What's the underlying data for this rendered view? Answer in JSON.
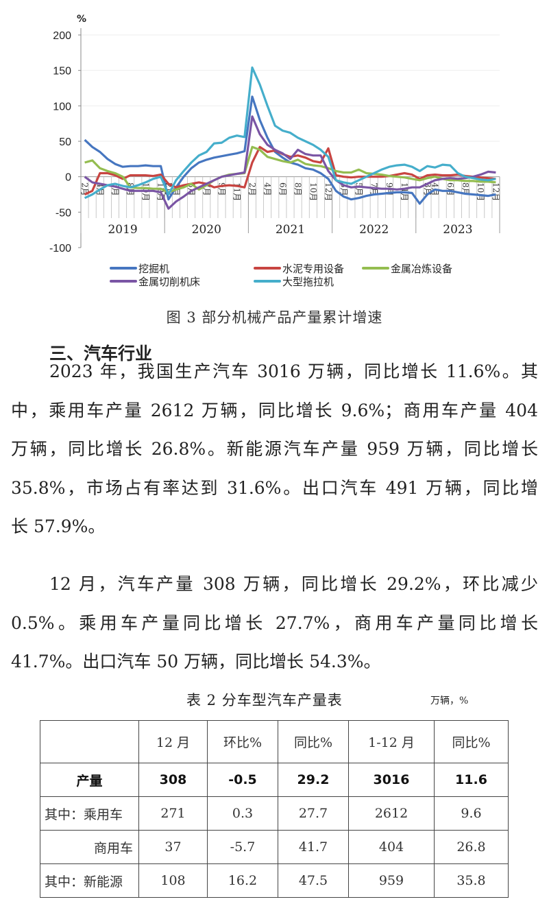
{
  "chart_data": {
    "type": "line",
    "ylabel": "%",
    "ylim": [
      -100,
      200
    ],
    "yticks": [
      200,
      150,
      100,
      50,
      0,
      -50,
      -100
    ],
    "years": [
      "2019",
      "2020",
      "2021",
      "2022",
      "2023"
    ],
    "month_labels": [
      [
        "2月",
        "",
        "4月",
        "",
        "6月",
        "",
        "8月",
        "",
        "10月",
        "",
        "12月"
      ],
      [
        "2月",
        "3月",
        "",
        "5月",
        "",
        "7月",
        "",
        "9月",
        "",
        "11月",
        ""
      ],
      [
        "2月",
        "",
        "4月",
        "",
        "6月",
        "",
        "8月",
        "",
        "10月",
        "",
        "12月"
      ],
      [
        "",
        "3月",
        "",
        "5月",
        "",
        "7月",
        "",
        "9月",
        "",
        "11月",
        ""
      ],
      [
        "",
        "3月",
        "4月",
        "",
        "6月",
        "",
        "8月",
        "",
        "10月",
        "",
        "12月"
      ]
    ],
    "x_note": "Feb–Dec of each year, 2019–2023",
    "grid": "horizontal",
    "legend": "bottom",
    "series": [
      {
        "name": "挖掘机",
        "color": "#4676c0",
        "values": [
          52,
          42,
          35,
          25,
          18,
          14,
          15,
          15,
          16,
          15,
          15,
          -32,
          -15,
          0,
          12,
          20,
          24,
          27,
          29,
          31,
          33,
          36,
          113,
          80,
          55,
          35,
          27,
          20,
          17,
          12,
          10,
          5,
          -3,
          -20,
          -28,
          -32,
          -30,
          -27,
          -25,
          -24,
          -23,
          -22,
          -22,
          -23,
          -38,
          -25,
          -18,
          -20,
          -20,
          -22,
          -24,
          -25,
          -26,
          -27,
          -25
        ]
      },
      {
        "name": "水泥专用设备",
        "color": "#c84441",
        "values": [
          -25,
          -20,
          5,
          5,
          2,
          -3,
          2,
          2,
          2,
          1,
          3,
          -10,
          -15,
          -12,
          -10,
          -8,
          -10,
          -15,
          -13,
          -12,
          -13,
          -15,
          20,
          42,
          35,
          37,
          32,
          28,
          30,
          27,
          22,
          20,
          40,
          2,
          0,
          -1,
          0,
          0,
          0,
          0,
          1,
          3,
          5,
          3,
          -3,
          2,
          3,
          2,
          2,
          3,
          1,
          0,
          -1,
          -2,
          -3
        ]
      },
      {
        "name": "金属冶炼设备",
        "color": "#94bd50",
        "values": [
          20,
          23,
          12,
          8,
          5,
          0,
          -15,
          -16,
          -16,
          -17,
          -17,
          -22,
          -18,
          -15,
          -10,
          -18,
          -12,
          -5,
          0,
          3,
          4,
          5,
          42,
          38,
          28,
          25,
          22,
          20,
          24,
          18,
          16,
          15,
          12,
          8,
          6,
          6,
          10,
          5,
          4,
          3,
          1,
          0,
          -1,
          -3,
          -5,
          -2,
          0,
          -3,
          -5,
          -5,
          -6,
          -6,
          -7,
          -7,
          -8
        ]
      },
      {
        "name": "金属切削机床",
        "color": "#7a55a4",
        "values": [
          0,
          -8,
          -10,
          -12,
          -14,
          -17,
          -20,
          -20,
          -20,
          -20,
          -22,
          -45,
          -35,
          -28,
          -20,
          -15,
          -10,
          -5,
          0,
          2,
          4,
          6,
          85,
          60,
          45,
          38,
          33,
          25,
          38,
          32,
          30,
          30,
          8,
          -5,
          -12,
          -15,
          -14,
          -15,
          -16,
          -17,
          -17,
          -18,
          -17,
          -15,
          -15,
          -10,
          -5,
          -3,
          -2,
          -3,
          -2,
          0,
          3,
          7,
          6
        ]
      },
      {
        "name": "大型拖拉机",
        "color": "#45aecb",
        "values": [
          -30,
          -25,
          -18,
          -12,
          -10,
          -13,
          -15,
          -12,
          -8,
          -3,
          0,
          -25,
          -5,
          8,
          20,
          30,
          35,
          47,
          48,
          55,
          58,
          56,
          154,
          130,
          100,
          72,
          65,
          62,
          55,
          50,
          45,
          38,
          28,
          -5,
          -8,
          -10,
          -5,
          0,
          5,
          10,
          14,
          16,
          17,
          14,
          8,
          15,
          13,
          17,
          16,
          5,
          0,
          -2,
          -4,
          -5,
          -3
        ]
      }
    ]
  },
  "caption": "图 3  部分机械产品产量累计增速",
  "heading": "三、汽车行业",
  "paragraph1": [
    "2023 年，我国生产汽车 3016 万辆，同比增长 11.6%。其",
    "中，乘用车产量 2612 万辆，同比增长 9.6%；商用车产量 404",
    "万辆，同比增长 26.8%。新能源汽车产量 959 万辆，同比增长",
    "35.8%，市场占有率达到 31.6%。出口汽车 491 万辆，同比增",
    "长 57.9%。"
  ],
  "paragraph2": [
    "12 月，汽车产量 308 万辆，同比增长 29.2%，环比减少",
    "0.5%。乘用车产量同比增长 27.7%，商用车产量同比增长",
    "41.7%。出口汽车 50 万辆，同比增长 54.3%。"
  ],
  "table": {
    "title": "表 2  分车型汽车产量表",
    "unit": "万辆，%",
    "headers": [
      "",
      "12 月",
      "环比%",
      "同比%",
      "1-12 月",
      "同比%"
    ],
    "rows": [
      [
        "产量",
        "308",
        "-0.5",
        "29.2",
        "3016",
        "11.6"
      ],
      [
        "其中：乘用车",
        "271",
        "0.3",
        "27.7",
        "2612",
        "9.6"
      ],
      [
        "商用车",
        "37",
        "-5.7",
        "41.7",
        "404",
        "26.8"
      ],
      [
        "其中：新能源",
        "108",
        "16.2",
        "47.5",
        "959",
        "35.8"
      ]
    ]
  }
}
